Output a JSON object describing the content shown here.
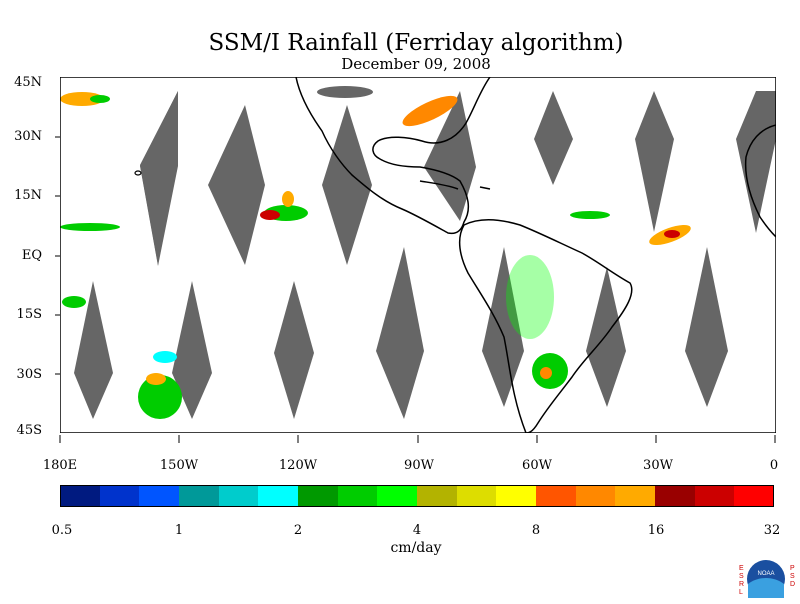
{
  "title": "SSM/I Rainfall (Ferriday algorithm)",
  "date": "December 09, 2008",
  "lat_labels": [
    "45N",
    "30N",
    "15N",
    "EQ",
    "15S",
    "30S",
    "45S"
  ],
  "lon_labels": [
    "180E",
    "150W",
    "120W",
    "90W",
    "60W",
    "30W",
    "0"
  ],
  "colorbar": {
    "ticks": [
      "0.5",
      "1",
      "2",
      "4",
      "8",
      "16",
      "32"
    ],
    "unit": "cm/day",
    "colors": [
      "#001a80",
      "#0033cc",
      "#0055ff",
      "#009999",
      "#00cccc",
      "#00ffff",
      "#009900",
      "#00cc00",
      "#00ff00",
      "#b3b300",
      "#dddd00",
      "#ffff00",
      "#ff5500",
      "#ff8800",
      "#ffaa00",
      "#990000",
      "#cc0000",
      "#ff0000"
    ]
  },
  "map": {
    "lon_range": [
      -180,
      0
    ],
    "lat_range": [
      -45,
      45
    ],
    "swath_color": "#666666",
    "land_color": "#000000"
  },
  "logo": {
    "left_text": "ESRL",
    "right_text": "PSD",
    "center_text": "NOAA"
  }
}
